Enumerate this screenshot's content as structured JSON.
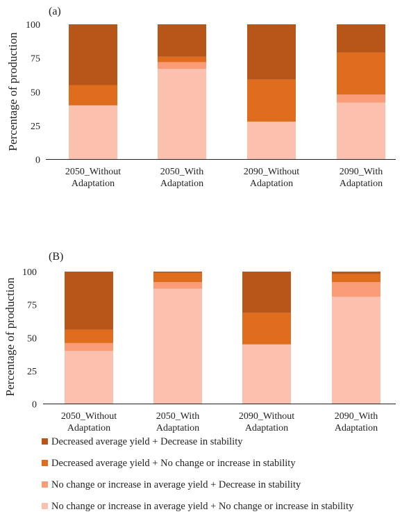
{
  "legend": [
    {
      "label": "Decreased average yield + Decrease in stability",
      "color": "#b8561a"
    },
    {
      "label": "Decreased average yield + No change or increase in stability",
      "color": "#e06c1e"
    },
    {
      "label": "No change or increase in average yield + Decrease in stability",
      "color": "#fa9c78"
    },
    {
      "label": "No change or increase in average yield + No change or increase in stability",
      "color": "#fcc1ae"
    }
  ],
  "chart_data": [
    {
      "type": "bar",
      "stacked": true,
      "panel_label": "(a)",
      "ylabel": "Percentage of production",
      "ylim": [
        0,
        100
      ],
      "yticks": [
        0,
        25,
        50,
        75,
        100
      ],
      "categories": [
        [
          "2050_Without",
          "Adaptation"
        ],
        [
          "2050_With",
          "Adaptation"
        ],
        [
          "2090_Without",
          "Adaptation"
        ],
        [
          "2090_With",
          "Adaptation"
        ]
      ],
      "series": [
        {
          "name": "No change or increase in average yield + No change or increase in stability",
          "values": [
            40,
            67,
            28,
            42
          ]
        },
        {
          "name": "No change or increase in average yield + Decrease in stability",
          "values": [
            0,
            5,
            0,
            6
          ]
        },
        {
          "name": "Decreased average yield + No change or increase in stability",
          "values": [
            15,
            4,
            31,
            31
          ]
        },
        {
          "name": "Decreased average yield + Decrease in stability",
          "values": [
            45,
            24,
            41,
            21
          ]
        }
      ]
    },
    {
      "type": "bar",
      "stacked": true,
      "panel_label": "(B)",
      "ylabel": "Percentage of production",
      "ylim": [
        0,
        100
      ],
      "yticks": [
        0,
        25,
        50,
        75,
        100
      ],
      "categories": [
        [
          "2050_Without",
          "Adaptation"
        ],
        [
          "2050_With",
          "Adaptation"
        ],
        [
          "2090_Without",
          "Adaptation"
        ],
        [
          "2090_With",
          "Adaptation"
        ]
      ],
      "series": [
        {
          "name": "No change or increase in average yield + No change or increase in stability",
          "values": [
            40,
            87,
            45,
            81
          ]
        },
        {
          "name": "No change or increase in average yield + Decrease in stability",
          "values": [
            6,
            5,
            0,
            11
          ]
        },
        {
          "name": "Decreased average yield + No change or increase in stability",
          "values": [
            10,
            7,
            24,
            6
          ]
        },
        {
          "name": "Decreased average yield + Decrease in stability",
          "values": [
            44,
            1,
            31,
            2
          ]
        }
      ]
    }
  ]
}
